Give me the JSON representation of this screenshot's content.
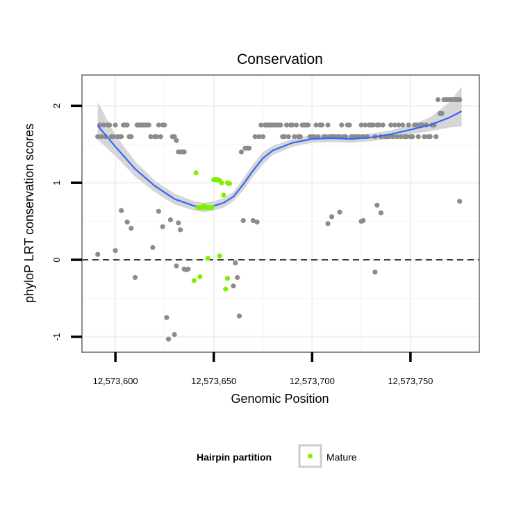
{
  "chart_data": {
    "type": "scatter",
    "title": "Conservation",
    "xlabel": "Genomic Position",
    "ylabel": "phyloP LRT conservation scores",
    "xlim": [
      12573583,
      12573785
    ],
    "ylim": [
      -1.2,
      2.4
    ],
    "x_ticks": [
      {
        "value": 12573600,
        "label": "12,573,600"
      },
      {
        "value": 12573650,
        "label": "12,573,650"
      },
      {
        "value": 12573700,
        "label": "12,573,700"
      },
      {
        "value": 12573750,
        "label": "12,573,750"
      }
    ],
    "y_ticks": [
      {
        "value": -1,
        "label": "-1"
      },
      {
        "value": 0,
        "label": "0"
      },
      {
        "value": 1,
        "label": "1"
      },
      {
        "value": 2,
        "label": "2"
      }
    ],
    "reference_line": {
      "y": 0,
      "style": "dashed"
    },
    "grid": true,
    "legend": {
      "title": "Hairpin partition",
      "position": "bottom",
      "entries": [
        {
          "label": "Mature",
          "color": "#7ff000"
        }
      ]
    },
    "colors": {
      "other": "#8c8c8c",
      "mature": "#7ff000",
      "smooth_line": "#3366ff",
      "ribbon": "#d6d6d6",
      "panel_border": "#7f7f7f"
    },
    "series": [
      {
        "group": "other",
        "points": [
          [
            12573591,
            1.6
          ],
          [
            12573592,
            1.75
          ],
          [
            12573593,
            1.6
          ],
          [
            12573594,
            1.75
          ],
          [
            12573595,
            1.6
          ],
          [
            12573596,
            1.75
          ],
          [
            12573597,
            1.75
          ],
          [
            12573598,
            1.6
          ],
          [
            12573599,
            1.6
          ],
          [
            12573600,
            1.75
          ],
          [
            12573601,
            1.6
          ],
          [
            12573602,
            1.6
          ],
          [
            12573603,
            1.6
          ],
          [
            12573604,
            1.75
          ],
          [
            12573605,
            1.75
          ],
          [
            12573606,
            1.75
          ],
          [
            12573607,
            1.6
          ],
          [
            12573608,
            1.6
          ],
          [
            12573611,
            1.75
          ],
          [
            12573612,
            1.75
          ],
          [
            12573613,
            1.75
          ],
          [
            12573614,
            1.75
          ],
          [
            12573615,
            1.75
          ],
          [
            12573616,
            1.75
          ],
          [
            12573617,
            1.75
          ],
          [
            12573618,
            1.6
          ],
          [
            12573620,
            1.6
          ],
          [
            12573621,
            1.6
          ],
          [
            12573622,
            1.75
          ],
          [
            12573623,
            1.6
          ],
          [
            12573624,
            1.75
          ],
          [
            12573625,
            1.75
          ],
          [
            12573629,
            1.6
          ],
          [
            12573630,
            1.6
          ],
          [
            12573631,
            1.55
          ],
          [
            12573632,
            1.4
          ],
          [
            12573633,
            1.4
          ],
          [
            12573634,
            1.4
          ],
          [
            12573635,
            1.4
          ],
          [
            12573591,
            0.07
          ],
          [
            12573600,
            0.12
          ],
          [
            12573603,
            0.64
          ],
          [
            12573606,
            0.49
          ],
          [
            12573608,
            0.41
          ],
          [
            12573610,
            -0.23
          ],
          [
            12573619,
            0.16
          ],
          [
            12573622,
            0.63
          ],
          [
            12573624,
            0.43
          ],
          [
            12573626,
            -0.75
          ],
          [
            12573627,
            -1.03
          ],
          [
            12573628,
            0.52
          ],
          [
            12573630,
            -0.97
          ],
          [
            12573631,
            -0.08
          ],
          [
            12573632,
            0.48
          ],
          [
            12573633,
            0.39
          ],
          [
            12573635,
            -0.12
          ],
          [
            12573636,
            -0.13
          ],
          [
            12573637,
            -0.12
          ],
          [
            12573660,
            -0.34
          ],
          [
            12573661,
            -0.04
          ],
          [
            12573662,
            -0.23
          ],
          [
            12573663,
            -0.73
          ],
          [
            12573664,
            1.4
          ],
          [
            12573665,
            0.51
          ],
          [
            12573666,
            1.45
          ],
          [
            12573667,
            1.45
          ],
          [
            12573668,
            1.45
          ],
          [
            12573670,
            0.51
          ],
          [
            12573671,
            1.6
          ],
          [
            12573672,
            0.49
          ],
          [
            12573673,
            1.6
          ],
          [
            12573674,
            1.75
          ],
          [
            12573675,
            1.6
          ],
          [
            12573676,
            1.75
          ],
          [
            12573677,
            1.75
          ],
          [
            12573678,
            1.75
          ],
          [
            12573679,
            1.75
          ],
          [
            12573680,
            1.75
          ],
          [
            12573681,
            1.75
          ],
          [
            12573682,
            1.75
          ],
          [
            12573683,
            1.75
          ],
          [
            12573684,
            1.75
          ],
          [
            12573685,
            1.6
          ],
          [
            12573686,
            1.6
          ],
          [
            12573687,
            1.75
          ],
          [
            12573688,
            1.6
          ],
          [
            12573689,
            1.75
          ],
          [
            12573690,
            1.75
          ],
          [
            12573691,
            1.6
          ],
          [
            12573692,
            1.75
          ],
          [
            12573693,
            1.6
          ],
          [
            12573694,
            1.6
          ],
          [
            12573695,
            1.75
          ],
          [
            12573696,
            1.75
          ],
          [
            12573697,
            1.75
          ],
          [
            12573698,
            1.75
          ],
          [
            12573699,
            1.6
          ],
          [
            12573700,
            1.6
          ],
          [
            12573701,
            1.6
          ],
          [
            12573702,
            1.75
          ],
          [
            12573703,
            1.6
          ],
          [
            12573704,
            1.75
          ],
          [
            12573705,
            1.75
          ],
          [
            12573706,
            1.6
          ],
          [
            12573707,
            1.6
          ],
          [
            12573708,
            1.75
          ],
          [
            12573709,
            1.6
          ],
          [
            12573710,
            1.6
          ],
          [
            12573711,
            1.6
          ],
          [
            12573712,
            1.6
          ],
          [
            12573713,
            1.6
          ],
          [
            12573714,
            1.6
          ],
          [
            12573715,
            1.75
          ],
          [
            12573716,
            1.6
          ],
          [
            12573717,
            1.6
          ],
          [
            12573718,
            1.75
          ],
          [
            12573719,
            1.75
          ],
          [
            12573720,
            1.6
          ],
          [
            12573721,
            1.6
          ],
          [
            12573722,
            1.6
          ],
          [
            12573723,
            1.6
          ],
          [
            12573724,
            1.6
          ],
          [
            12573725,
            1.75
          ],
          [
            12573726,
            1.6
          ],
          [
            12573727,
            1.75
          ],
          [
            12573728,
            1.6
          ],
          [
            12573729,
            1.75
          ],
          [
            12573730,
            1.75
          ],
          [
            12573731,
            1.75
          ],
          [
            12573732,
            1.6
          ],
          [
            12573733,
            1.75
          ],
          [
            12573734,
            1.75
          ],
          [
            12573735,
            1.6
          ],
          [
            12573736,
            1.75
          ],
          [
            12573737,
            1.6
          ],
          [
            12573738,
            1.6
          ],
          [
            12573739,
            1.6
          ],
          [
            12573740,
            1.75
          ],
          [
            12573741,
            1.6
          ],
          [
            12573742,
            1.75
          ],
          [
            12573743,
            1.6
          ],
          [
            12573744,
            1.75
          ],
          [
            12573745,
            1.6
          ],
          [
            12573746,
            1.75
          ],
          [
            12573747,
            1.6
          ],
          [
            12573748,
            1.6
          ],
          [
            12573749,
            1.75
          ],
          [
            12573750,
            1.6
          ],
          [
            12573751,
            1.6
          ],
          [
            12573752,
            1.75
          ],
          [
            12573753,
            1.75
          ],
          [
            12573754,
            1.6
          ],
          [
            12573755,
            1.75
          ],
          [
            12573756,
            1.75
          ],
          [
            12573757,
            1.6
          ],
          [
            12573758,
            1.75
          ],
          [
            12573759,
            1.6
          ],
          [
            12573760,
            1.6
          ],
          [
            12573761,
            1.75
          ],
          [
            12573762,
            1.75
          ],
          [
            12573763,
            1.6
          ],
          [
            12573764,
            2.08
          ],
          [
            12573765,
            1.9
          ],
          [
            12573766,
            1.9
          ],
          [
            12573767,
            2.08
          ],
          [
            12573768,
            2.08
          ],
          [
            12573769,
            2.08
          ],
          [
            12573770,
            2.08
          ],
          [
            12573771,
            2.08
          ],
          [
            12573772,
            2.08
          ],
          [
            12573773,
            2.08
          ],
          [
            12573774,
            2.08
          ],
          [
            12573775,
            2.08
          ],
          [
            12573708,
            0.47
          ],
          [
            12573710,
            0.56
          ],
          [
            12573714,
            0.62
          ],
          [
            12573725,
            0.5
          ],
          [
            12573726,
            0.51
          ],
          [
            12573732,
            -0.16
          ],
          [
            12573733,
            0.71
          ],
          [
            12573735,
            0.61
          ],
          [
            12573775,
            0.76
          ]
        ]
      },
      {
        "group": "mature",
        "points": [
          [
            12573641,
            1.13
          ],
          [
            12573642,
            0.68
          ],
          [
            12573643,
            0.68
          ],
          [
            12573644,
            0.68
          ],
          [
            12573645,
            0.7
          ],
          [
            12573646,
            0.68
          ],
          [
            12573647,
            0.68
          ],
          [
            12573648,
            0.68
          ],
          [
            12573649,
            0.68
          ],
          [
            12573650,
            1.04
          ],
          [
            12573651,
            1.04
          ],
          [
            12573652,
            1.04
          ],
          [
            12573653,
            1.03
          ],
          [
            12573654,
            1.0
          ],
          [
            12573655,
            0.84
          ],
          [
            12573657,
            1.0
          ],
          [
            12573658,
            0.99
          ],
          [
            12573640,
            -0.27
          ],
          [
            12573643,
            -0.22
          ],
          [
            12573647,
            0.02
          ],
          [
            12573653,
            0.05
          ],
          [
            12573656,
            -0.38
          ],
          [
            12573657,
            -0.24
          ]
        ]
      }
    ],
    "smooth": {
      "x": [
        12573591,
        12573600,
        12573610,
        12573620,
        12573630,
        12573640,
        12573645,
        12573650,
        12573655,
        12573660,
        12573665,
        12573670,
        12573675,
        12573680,
        12573690,
        12573700,
        12573710,
        12573720,
        12573730,
        12573740,
        12573750,
        12573760,
        12573770,
        12573776
      ],
      "y": [
        1.74,
        1.47,
        1.18,
        0.96,
        0.79,
        0.7,
        0.68,
        0.7,
        0.74,
        0.82,
        0.98,
        1.16,
        1.32,
        1.42,
        1.52,
        1.57,
        1.58,
        1.57,
        1.59,
        1.63,
        1.69,
        1.75,
        1.85,
        1.93
      ],
      "lower": [
        1.56,
        1.35,
        1.08,
        0.88,
        0.72,
        0.64,
        0.62,
        0.64,
        0.68,
        0.76,
        0.9,
        1.08,
        1.24,
        1.36,
        1.47,
        1.52,
        1.53,
        1.52,
        1.54,
        1.58,
        1.63,
        1.67,
        1.72,
        1.73
      ],
      "upper": [
        2.05,
        1.62,
        1.28,
        1.03,
        0.86,
        0.76,
        0.74,
        0.76,
        0.8,
        0.88,
        1.06,
        1.24,
        1.4,
        1.48,
        1.57,
        1.62,
        1.63,
        1.62,
        1.64,
        1.68,
        1.75,
        1.85,
        2.05,
        2.25
      ]
    }
  }
}
